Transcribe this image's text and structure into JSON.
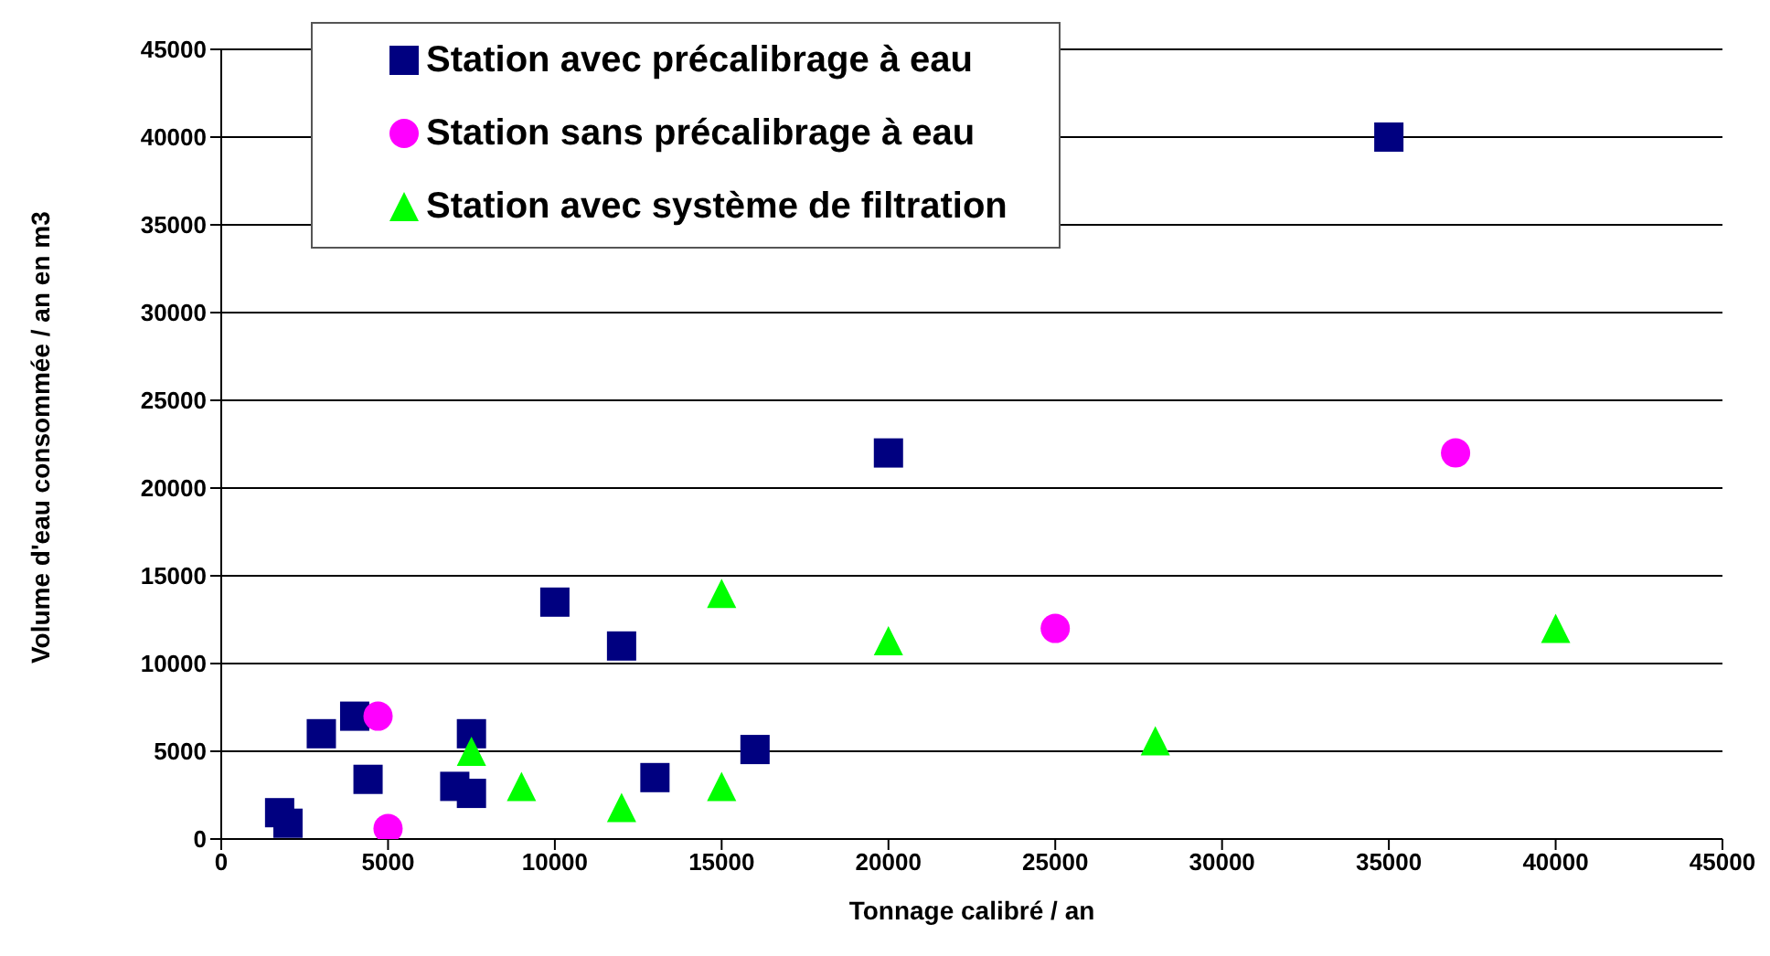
{
  "chart_data": {
    "type": "scatter",
    "xlabel": "Tonnage calibré / an",
    "ylabel": "Volume d'eau consommée / an en m3",
    "xlim": [
      0,
      45000
    ],
    "xticks": [
      0,
      5000,
      10000,
      15000,
      20000,
      25000,
      30000,
      35000,
      40000,
      45000
    ],
    "ylim": [
      0,
      45000
    ],
    "yticks": [
      0,
      5000,
      10000,
      15000,
      20000,
      25000,
      30000,
      35000,
      40000,
      45000
    ],
    "grid": "y",
    "legend": "top",
    "series": [
      {
        "name": "Station avec précalibrage à eau",
        "color": "#000080",
        "marker": "square",
        "x": [
          1750,
          2000,
          3000,
          4000,
          4400,
          7000,
          7500,
          7500,
          10000,
          12000,
          13000,
          16000,
          20000,
          35000
        ],
        "values": [
          1500,
          900,
          6000,
          7000,
          3400,
          3000,
          6000,
          2600,
          13500,
          11000,
          3500,
          5100,
          22000,
          40000
        ]
      },
      {
        "name": "Station sans précalibrage à eau",
        "color": "#ff00ff",
        "marker": "circle",
        "x": [
          4700,
          5000,
          25000,
          37000
        ],
        "values": [
          7000,
          600,
          12000,
          22000
        ]
      },
      {
        "name": "Station avec système de filtration",
        "color": "#00ff00",
        "marker": "triangle",
        "x": [
          7500,
          9000,
          12000,
          15000,
          15000,
          20000,
          28000,
          40000
        ],
        "values": [
          5000,
          3000,
          1800,
          14000,
          3000,
          11300,
          5600,
          12000
        ]
      }
    ]
  }
}
